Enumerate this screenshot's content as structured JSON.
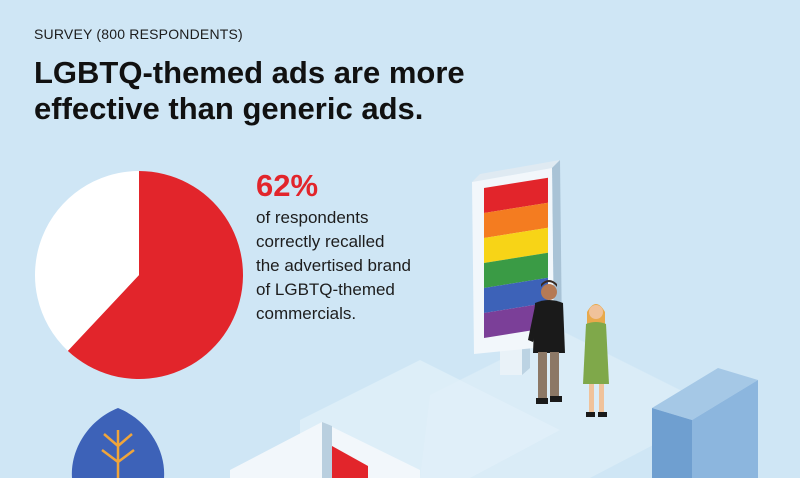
{
  "header": {
    "eyebrow": "SURVEY (800 RESPONDENTS)",
    "headline": "LGBTQ-themed ads are more effective than generic ads."
  },
  "stat": {
    "percent_label": "62%",
    "description_lines": [
      "of respondents",
      "correctly recalled",
      "the advertised brand",
      "of LGBTQ-themed",
      "commercials."
    ]
  },
  "colors": {
    "accent": "#e2252b",
    "background": "#cfe6f5",
    "pie_remainder": "#ffffff"
  },
  "chart_data": {
    "type": "pie",
    "slices": [
      {
        "value": 62,
        "color": "#e2252b"
      },
      {
        "value": 38,
        "color": "#ffffff"
      }
    ]
  },
  "illustration": {
    "icons": [
      "rainbow-billboard-icon",
      "man-figure-icon",
      "woman-figure-icon",
      "leaf-tree-icon",
      "building-icon"
    ],
    "rainbow_stripes": [
      "#e2252b",
      "#f47c20",
      "#f7d417",
      "#3a9b45",
      "#3d62b8",
      "#7b3f98"
    ]
  }
}
